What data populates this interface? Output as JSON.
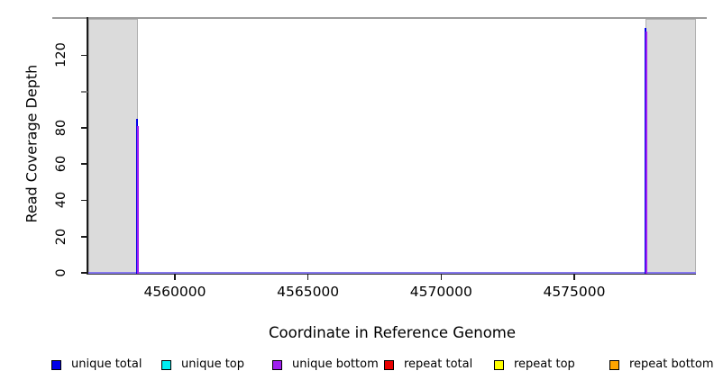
{
  "chart_data": {
    "type": "line",
    "title": "",
    "xlabel": "Coordinate in Reference Genome",
    "ylabel": "Read Coverage Depth",
    "xlim": [
      4556750,
      4579572
    ],
    "ylim": [
      0,
      140.6
    ],
    "grid": false,
    "legend_position": "bottom",
    "xticks": {
      "values": [
        4560000,
        4565000,
        4570000,
        4575000
      ],
      "labels": [
        "4560000",
        "4565000",
        "4570000",
        "4575000"
      ]
    },
    "yticks": {
      "values": [
        0,
        20,
        40,
        60,
        80,
        100,
        120
      ],
      "labels": [
        "0",
        "20",
        "40",
        "60",
        "80",
        "",
        "120"
      ]
    },
    "shaded_regions": [
      {
        "x_start": 4556750,
        "x_end": 4558610,
        "fill": "#dbdbdb",
        "note": "masked/no-data region"
      },
      {
        "x_start": 4577675,
        "x_end": 4579572,
        "fill": "#dbdbdb",
        "note": "masked/no-data region"
      }
    ],
    "baseline_value": 0,
    "series": [
      {
        "name": "unique total",
        "color": "#0000e8",
        "points": [
          {
            "x": 4558580,
            "y": 85
          },
          {
            "x": 4577690,
            "y": 135
          }
        ]
      },
      {
        "name": "unique top",
        "color": "#00eef2",
        "points": []
      },
      {
        "name": "unique bottom",
        "color": "#a020f0",
        "points": [
          {
            "x": 4558580,
            "y": 81
          },
          {
            "x": 4577690,
            "y": 133
          }
        ]
      },
      {
        "name": "repeat total",
        "color": "#e80000",
        "points": []
      },
      {
        "name": "repeat top",
        "color": "#ffff00",
        "points": []
      },
      {
        "name": "repeat bottom",
        "color": "#ffa500",
        "points": []
      }
    ]
  },
  "legend": {
    "items": [
      {
        "label": "unique total",
        "color": "#0000e8"
      },
      {
        "label": "unique top",
        "color": "#00eef2"
      },
      {
        "label": "unique bottom",
        "color": "#a020f0"
      },
      {
        "label": "repeat total",
        "color": "#e80000"
      },
      {
        "label": "repeat top",
        "color": "#ffff00"
      },
      {
        "label": "repeat bottom",
        "color": "#ffa500"
      }
    ]
  }
}
